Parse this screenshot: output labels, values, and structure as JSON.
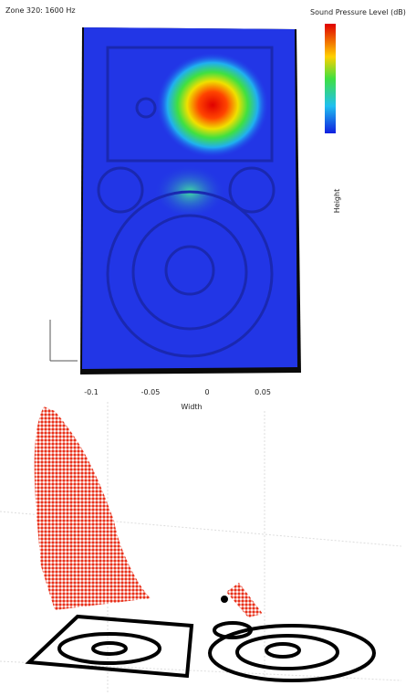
{
  "header": {
    "title": "Zone 320: 1600 Hz"
  },
  "colorbar": {
    "title": "Sound Pressure Level (dB)"
  },
  "axes": {
    "x_label": "Width",
    "y_label": "Height",
    "x_ticks": [
      "-0.1",
      "-0.05",
      "0",
      "0.05"
    ]
  }
}
